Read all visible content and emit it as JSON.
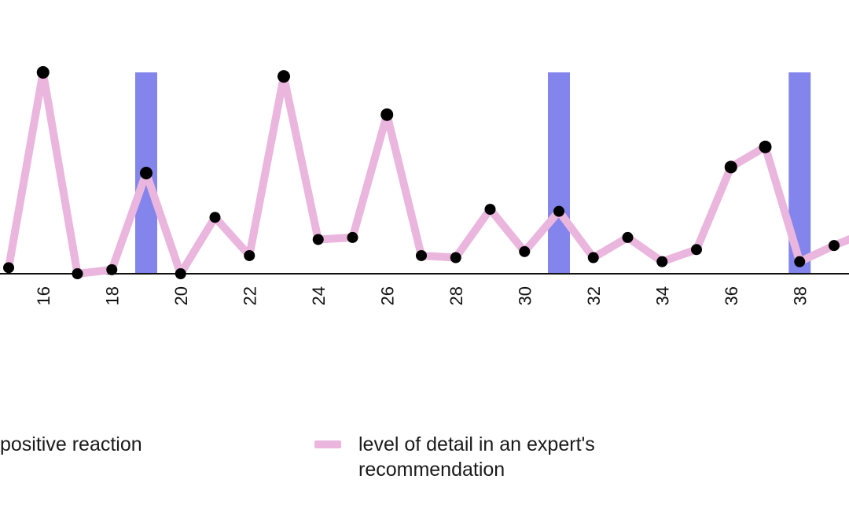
{
  "chart_data": {
    "type": "line",
    "title": "",
    "xlabel": "",
    "ylabel": "",
    "x_ticks": [
      16,
      18,
      20,
      22,
      24,
      26,
      28,
      30,
      32,
      34,
      36,
      38
    ],
    "series": [
      {
        "name": "level of detail in an expert's recommendation",
        "color": "#eab6de",
        "marker_color": "#000000",
        "points": [
          {
            "x": 15,
            "y": 3
          },
          {
            "x": 16,
            "y": 100
          },
          {
            "x": 17,
            "y": 0
          },
          {
            "x": 18,
            "y": 2
          },
          {
            "x": 19,
            "y": 50
          },
          {
            "x": 20,
            "y": 0
          },
          {
            "x": 21,
            "y": 28
          },
          {
            "x": 22,
            "y": 9
          },
          {
            "x": 23,
            "y": 98
          },
          {
            "x": 24,
            "y": 17
          },
          {
            "x": 25,
            "y": 18
          },
          {
            "x": 26,
            "y": 79
          },
          {
            "x": 27,
            "y": 9
          },
          {
            "x": 28,
            "y": 8
          },
          {
            "x": 29,
            "y": 32
          },
          {
            "x": 30,
            "y": 11
          },
          {
            "x": 31,
            "y": 31
          },
          {
            "x": 32,
            "y": 8
          },
          {
            "x": 33,
            "y": 18
          },
          {
            "x": 34,
            "y": 6
          },
          {
            "x": 35,
            "y": 12
          },
          {
            "x": 36,
            "y": 53
          },
          {
            "x": 37,
            "y": 63
          },
          {
            "x": 38,
            "y": 6
          },
          {
            "x": 39,
            "y": 14
          },
          {
            "x": 40,
            "y": 21
          }
        ]
      }
    ],
    "bars": {
      "name": "positive reaction",
      "color": "#8485ec",
      "x": [
        19,
        31,
        38
      ],
      "height": 100
    },
    "ylim": [
      0,
      100
    ],
    "grid": false,
    "legend_position": "bottom"
  },
  "legend": {
    "item1_label": "positive reaction",
    "item2_label": "level of detail in an expert's recommendation"
  }
}
